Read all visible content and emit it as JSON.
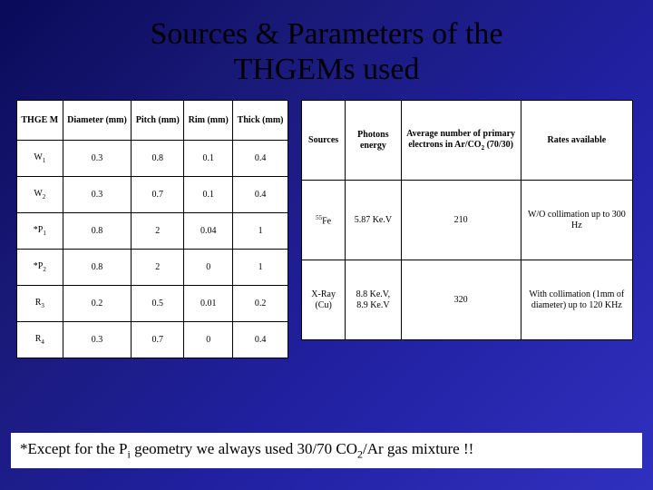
{
  "title_line1": "Sources & Parameters of the",
  "title_line2": "THGEMs used",
  "left_table": {
    "headers": [
      "THGE M",
      "Diameter (mm)",
      "Pitch (mm)",
      "Rim (mm)",
      "Thick (mm)"
    ],
    "rows": [
      {
        "label_html": "W<sub>1</sub>",
        "cells": [
          "0.3",
          "0.8",
          "0.1",
          "0.4"
        ]
      },
      {
        "label_html": "W<sub>2</sub>",
        "cells": [
          "0.3",
          "0.7",
          "0.1",
          "0.4"
        ]
      },
      {
        "label_html": "*P<sub>1</sub>",
        "cells": [
          "0.8",
          "2",
          "0.04",
          "1"
        ]
      },
      {
        "label_html": "*P<sub>2</sub>",
        "cells": [
          "0.8",
          "2",
          "0",
          "1"
        ]
      },
      {
        "label_html": "R<sub>3</sub>",
        "cells": [
          "0.2",
          "0.5",
          "0.01",
          "0.2"
        ]
      },
      {
        "label_html": "R<sub>4</sub>",
        "cells": [
          "0.3",
          "0.7",
          "0",
          "0.4"
        ]
      }
    ]
  },
  "right_table": {
    "headers_html": [
      "Sources",
      "Photons energy",
      "Average number of primary electrons in Ar/CO<sub>2</sub> (70/30)",
      "Rates available"
    ],
    "rows": [
      {
        "cells_html": [
          "<sup>55</sup>Fe",
          "5.87 Ke.V",
          "210",
          "W/O collimation up to 300 Hz"
        ]
      },
      {
        "cells_html": [
          "X-Ray (Cu)",
          "8.8 Ke.V, 8.9 Ke.V",
          "320",
          "With collimation (1mm of diameter) up to 120 KHz"
        ]
      }
    ]
  },
  "footnote_html": "*Except for the P<sub>i</sub> geometry we always used 30/70 CO<sub>2</sub>/Ar gas mixture !!",
  "colors": {
    "bg_gradient_from": "#0a0a5a",
    "bg_gradient_to": "#3030c0",
    "table_bg": "#ffffff",
    "border": "#000000"
  }
}
